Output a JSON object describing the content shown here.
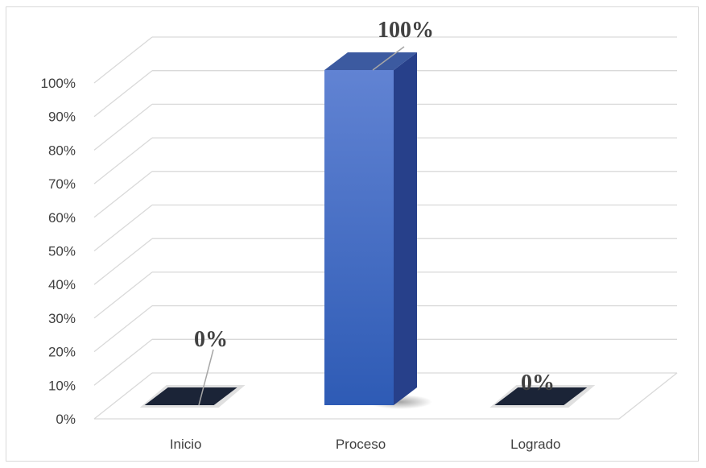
{
  "chart_data": {
    "type": "bar",
    "style": "3d-column",
    "categories": [
      "Inicio",
      "Proceso",
      "Logrado"
    ],
    "values": [
      0,
      100,
      0
    ],
    "data_labels": [
      "0%",
      "100%",
      "0%"
    ],
    "y_tick_labels": [
      "0%",
      "10%",
      "20%",
      "30%",
      "40%",
      "50%",
      "60%",
      "70%",
      "80%",
      "90%",
      "100%"
    ],
    "ylim": [
      0,
      100
    ],
    "grid": true,
    "legend": "none",
    "colors": {
      "bar_front_top": "#6183d3",
      "bar_front_bottom": "#2e5bb5",
      "bar_side": "#27408a",
      "bar_top": "#3c5aa0",
      "empty_bar": "#1b2437",
      "gridline": "#d9d9d9",
      "label_text": "#404040",
      "leader_line": "#a6a6a6"
    }
  }
}
